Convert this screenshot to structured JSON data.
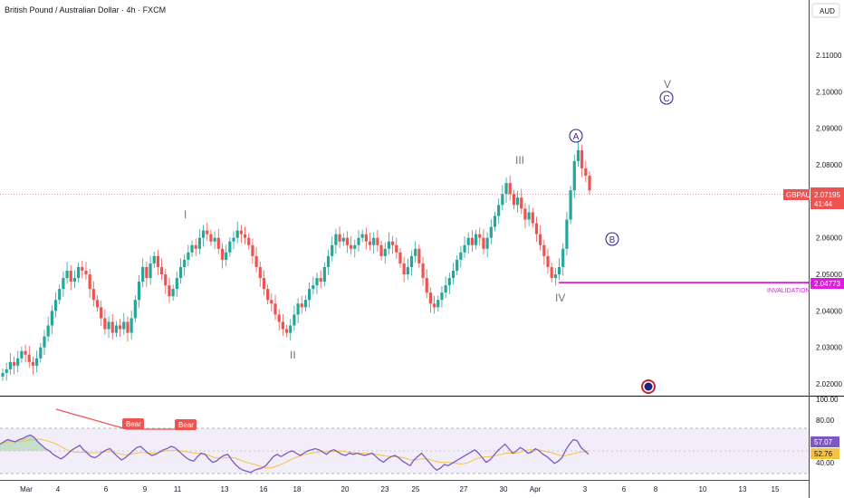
{
  "header": {
    "title": "British Pound / Australian Dollar · 4h · FXCM"
  },
  "axis": {
    "currency": "AUD"
  },
  "colors": {
    "up": "#26a69a",
    "down": "#ef5350",
    "invalidation": "#e01be0",
    "rsi": "#7e57c2",
    "rsi_ma": "#f5c242",
    "tag": "#ef5350"
  },
  "chart_data": [
    {
      "type": "candlestick",
      "title": "British Pound / Australian Dollar · 4h · FXCM",
      "ylim": [
        2.015,
        2.115
      ],
      "y_ticks": [
        "2.02000",
        "2.03000",
        "2.04000",
        "2.05000",
        "2.06000",
        "2.07000",
        "2.08000",
        "2.09000",
        "2.10000",
        "2.11000"
      ],
      "x_ticks": [
        "Mar",
        "4",
        "6",
        "9",
        "11",
        "13",
        "16",
        "18",
        "20",
        "23",
        "25",
        "27",
        "30",
        "Apr",
        "3",
        "6",
        "8",
        "10",
        "13",
        "15"
      ],
      "price_label": {
        "symbol": "GBPAUD",
        "value": 2.07195,
        "text": "2.07195",
        "countdown": "41:44"
      },
      "invalidation": {
        "value": 2.04773,
        "text": "2.04773",
        "label": "INVALIDATION"
      },
      "waves": [
        {
          "label": "I",
          "value": 2.0665
        },
        {
          "label": "II",
          "value": 2.031
        },
        {
          "label": "III",
          "value": 2.0815
        },
        {
          "label": "IV",
          "value": 2.0435
        },
        {
          "label": "V",
          "value": 2.1045
        }
      ],
      "circled": [
        {
          "label": "A",
          "value": 2.0885
        },
        {
          "label": "B",
          "value": 2.0595
        },
        {
          "label": "C",
          "value": 2.0985
        }
      ],
      "close": [
        2.023,
        2.024,
        2.026,
        2.025,
        2.027,
        2.029,
        2.028,
        2.026,
        2.025,
        2.027,
        2.03,
        2.033,
        2.036,
        2.04,
        2.043,
        2.046,
        2.049,
        2.051,
        2.048,
        2.049,
        2.052,
        2.051,
        2.05,
        2.046,
        2.043,
        2.041,
        2.038,
        2.035,
        2.037,
        2.034,
        2.036,
        2.035,
        2.037,
        2.034,
        2.038,
        2.043,
        2.048,
        2.052,
        2.049,
        2.053,
        2.055,
        2.052,
        2.05,
        2.047,
        2.044,
        2.046,
        2.049,
        2.052,
        2.054,
        2.056,
        2.058,
        2.057,
        2.06,
        2.062,
        2.061,
        2.059,
        2.06,
        2.057,
        2.054,
        2.056,
        2.059,
        2.06,
        2.062,
        2.061,
        2.06,
        2.058,
        2.055,
        2.052,
        2.049,
        2.046,
        2.043,
        2.042,
        2.039,
        2.037,
        2.035,
        2.034,
        2.036,
        2.039,
        2.042,
        2.041,
        2.043,
        2.046,
        2.047,
        2.049,
        2.048,
        2.052,
        2.055,
        2.058,
        2.061,
        2.059,
        2.06,
        2.058,
        2.057,
        2.058,
        2.06,
        2.061,
        2.059,
        2.058,
        2.06,
        2.058,
        2.055,
        2.057,
        2.059,
        2.058,
        2.056,
        2.053,
        2.05,
        2.052,
        2.055,
        2.057,
        2.053,
        2.049,
        2.045,
        2.042,
        2.041,
        2.043,
        2.045,
        2.047,
        2.049,
        2.051,
        2.054,
        2.056,
        2.058,
        2.06,
        2.058,
        2.061,
        2.06,
        2.057,
        2.06,
        2.063,
        2.066,
        2.069,
        2.072,
        2.075,
        2.072,
        2.069,
        2.071,
        2.068,
        2.065,
        2.067,
        2.064,
        2.061,
        2.058,
        2.055,
        2.052,
        2.049,
        2.05,
        2.052,
        2.057,
        2.065,
        2.073,
        2.081,
        2.084,
        2.079,
        2.077,
        2.073
      ],
      "rsi": {
        "ticks": [
          "100.00",
          "80.00",
          "60.00",
          "40.00"
        ],
        "value": 57.07,
        "value_text": "57.07",
        "ma": 52.76,
        "ma_text": "52.76",
        "divergence_labels": [
          "Bear",
          "Bear"
        ],
        "series": [
          66,
          68,
          70,
          69,
          68,
          70,
          71,
          73,
          74,
          72,
          68,
          65,
          62,
          60,
          57,
          55,
          53,
          55,
          58,
          61,
          63,
          65,
          61,
          58,
          55,
          54,
          56,
          59,
          61,
          62,
          58,
          55,
          52,
          54,
          57,
          60,
          63,
          64,
          61,
          58,
          56,
          57,
          59,
          61,
          62,
          64,
          63,
          60,
          57,
          54,
          52,
          51,
          55,
          58,
          57,
          53,
          50,
          51,
          54,
          56,
          57,
          52,
          48,
          45,
          43,
          42,
          41,
          43,
          44,
          45,
          47,
          51,
          55,
          57,
          55,
          57,
          59,
          60,
          58,
          56,
          58,
          60,
          61,
          62,
          61,
          59,
          57,
          60,
          61,
          59,
          57,
          56,
          58,
          57,
          58,
          57,
          56,
          57,
          58,
          55,
          52,
          50,
          53,
          55,
          56,
          54,
          51,
          49,
          47,
          52,
          55,
          58,
          54,
          50,
          46,
          43,
          45,
          48,
          47,
          49,
          51,
          53,
          55,
          57,
          59,
          61,
          58,
          54,
          50,
          52,
          56,
          60,
          63,
          66,
          62,
          58,
          60,
          63,
          61,
          58,
          59,
          62,
          60,
          57,
          55,
          52,
          49,
          51,
          54,
          61,
          66,
          70,
          69,
          63,
          60,
          57
        ]
      }
    }
  ]
}
